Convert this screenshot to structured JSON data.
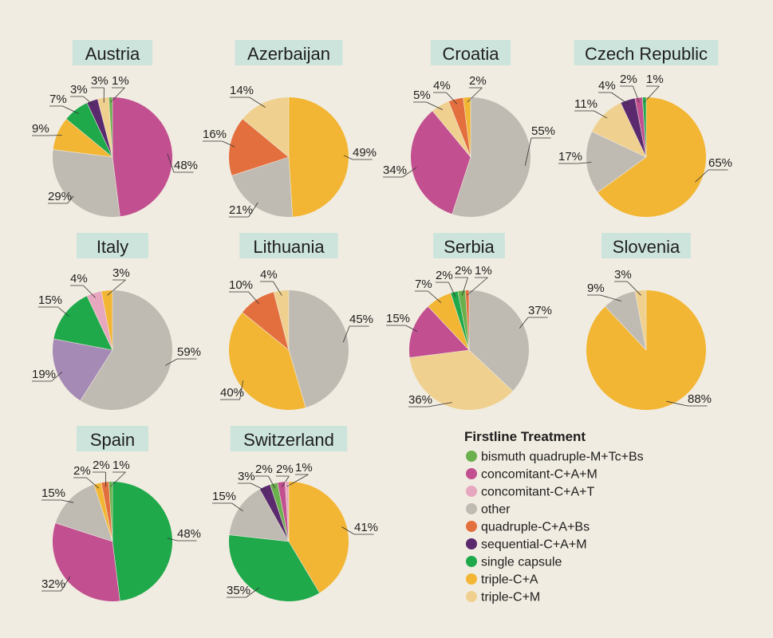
{
  "colors": {
    "background": "#f1ece1",
    "title_box": "#cde4dc",
    "bismuth quadruple-M+Tc+Bs": "#6ab04c",
    "concomitant-C+A+M": "#c24f90",
    "concomitant-C+A+T": "#e7a7be",
    "other": "#c0bbb2",
    "quadruple-C+A+Bs": "#e46f3e",
    "sequential-C+A+M": "#5b2a6e",
    "single capsule": "#1fa94b",
    "triple-C+A": "#f2b634",
    "triple-C+M": "#efd08e",
    "Italy-extra": "#a48ab5"
  },
  "legend": {
    "title": "Firstline Treatment",
    "items": [
      {
        "label": "bismuth quadruple-M+Tc+Bs",
        "color": "#6ab04c"
      },
      {
        "label": "concomitant-C+A+M",
        "color": "#c24f90"
      },
      {
        "label": "concomitant-C+A+T",
        "color": "#e7a7be"
      },
      {
        "label": "other",
        "color": "#c0bbb2"
      },
      {
        "label": "quadruple-C+A+Bs",
        "color": "#e46f3e"
      },
      {
        "label": "sequential-C+A+M",
        "color": "#5b2a6e"
      },
      {
        "label": "single capsule",
        "color": "#1fa94b"
      },
      {
        "label": "triple-C+A",
        "color": "#f2b634"
      },
      {
        "label": "triple-C+M",
        "color": "#efd08e"
      }
    ]
  },
  "chart_data": [
    {
      "type": "pie",
      "title": "Austria",
      "slices": [
        {
          "category": "concomitant-C+A+M",
          "value": 48,
          "label": "48%"
        },
        {
          "category": "other",
          "value": 29,
          "label": "29%"
        },
        {
          "category": "triple-C+A",
          "value": 9,
          "label": "9%"
        },
        {
          "category": "single capsule",
          "value": 7,
          "label": "7%"
        },
        {
          "category": "sequential-C+A+M",
          "value": 3,
          "label": "3%"
        },
        {
          "category": "triple-C+M",
          "value": 3,
          "label": "3%"
        },
        {
          "category": "bismuth quadruple-M+Tc+Bs",
          "value": 1,
          "label": "1%"
        }
      ]
    },
    {
      "type": "pie",
      "title": "Azerbaijan",
      "slices": [
        {
          "category": "triple-C+A",
          "value": 49,
          "label": "49%"
        },
        {
          "category": "other",
          "value": 21,
          "label": "21%"
        },
        {
          "category": "quadruple-C+A+Bs",
          "value": 16,
          "label": "16%"
        },
        {
          "category": "triple-C+M",
          "value": 14,
          "label": "14%"
        }
      ]
    },
    {
      "type": "pie",
      "title": "Croatia",
      "slices": [
        {
          "category": "other",
          "value": 55,
          "label": "55%"
        },
        {
          "category": "concomitant-C+A+M",
          "value": 34,
          "label": "34%"
        },
        {
          "category": "triple-C+M",
          "value": 5,
          "label": "5%"
        },
        {
          "category": "quadruple-C+A+Bs",
          "value": 4,
          "label": "4%"
        },
        {
          "category": "triple-C+A",
          "value": 2,
          "label": "2%"
        }
      ]
    },
    {
      "type": "pie",
      "title": "Czech Republic",
      "slices": [
        {
          "category": "triple-C+A",
          "value": 65,
          "label": "65%"
        },
        {
          "category": "other",
          "value": 17,
          "label": "17%"
        },
        {
          "category": "triple-C+M",
          "value": 11,
          "label": "11%"
        },
        {
          "category": "sequential-C+A+M",
          "value": 4,
          "label": "4%"
        },
        {
          "category": "concomitant-C+A+M",
          "value": 2,
          "label": "2%"
        },
        {
          "category": "single capsule",
          "value": 1,
          "label": "1%"
        }
      ]
    },
    {
      "type": "pie",
      "title": "Italy",
      "slices": [
        {
          "category": "other",
          "value": 59,
          "label": "59%"
        },
        {
          "category": "Italy-extra",
          "value": 19,
          "label": "19%"
        },
        {
          "category": "single capsule",
          "value": 15,
          "label": "15%"
        },
        {
          "category": "concomitant-C+A+T",
          "value": 4,
          "label": "4%"
        },
        {
          "category": "triple-C+A",
          "value": 3,
          "label": "3%"
        }
      ]
    },
    {
      "type": "pie",
      "title": "Lithuania",
      "slices": [
        {
          "category": "other",
          "value": 45,
          "label": "45%"
        },
        {
          "category": "triple-C+A",
          "value": 40,
          "label": "40%"
        },
        {
          "category": "quadruple-C+A+Bs",
          "value": 10,
          "label": "10%"
        },
        {
          "category": "triple-C+M",
          "value": 4,
          "label": "4%"
        }
      ]
    },
    {
      "type": "pie",
      "title": "Serbia",
      "slices": [
        {
          "category": "other",
          "value": 37,
          "label": "37%"
        },
        {
          "category": "triple-C+M",
          "value": 36,
          "label": "36%"
        },
        {
          "category": "concomitant-C+A+M",
          "value": 15,
          "label": "15%"
        },
        {
          "category": "triple-C+A",
          "value": 7,
          "label": "7%"
        },
        {
          "category": "single capsule",
          "value": 2,
          "label": "2%"
        },
        {
          "category": "bismuth quadruple-M+Tc+Bs",
          "value": 2,
          "label": "2%"
        },
        {
          "category": "quadruple-C+A+Bs",
          "value": 1,
          "label": "1%"
        }
      ]
    },
    {
      "type": "pie",
      "title": "Slovenia",
      "slices": [
        {
          "category": "triple-C+A",
          "value": 88,
          "label": "88%"
        },
        {
          "category": "other",
          "value": 9,
          "label": "9%"
        },
        {
          "category": "triple-C+M",
          "value": 3,
          "label": "3%"
        }
      ]
    },
    {
      "type": "pie",
      "title": "Spain",
      "slices": [
        {
          "category": "single capsule",
          "value": 48,
          "label": "48%"
        },
        {
          "category": "concomitant-C+A+M",
          "value": 32,
          "label": "32%"
        },
        {
          "category": "other",
          "value": 15,
          "label": "15%"
        },
        {
          "category": "triple-C+A",
          "value": 2,
          "label": "2%"
        },
        {
          "category": "quadruple-C+A+Bs",
          "value": 2,
          "label": "2%"
        },
        {
          "category": "bismuth quadruple-M+Tc+Bs",
          "value": 1,
          "label": "1%"
        }
      ]
    },
    {
      "type": "pie",
      "title": "Switzerland",
      "slices": [
        {
          "category": "triple-C+A",
          "value": 41,
          "label": "41%"
        },
        {
          "category": "single capsule",
          "value": 35,
          "label": "35%"
        },
        {
          "category": "other",
          "value": 15,
          "label": "15%"
        },
        {
          "category": "sequential-C+A+M",
          "value": 3,
          "label": "3%"
        },
        {
          "category": "bismuth quadruple-M+Tc+Bs",
          "value": 2,
          "label": "2%"
        },
        {
          "category": "concomitant-C+A+M",
          "value": 2,
          "label": "2%"
        },
        {
          "category": "concomitant-C+A+T",
          "value": 1,
          "label": "1%"
        }
      ]
    }
  ]
}
